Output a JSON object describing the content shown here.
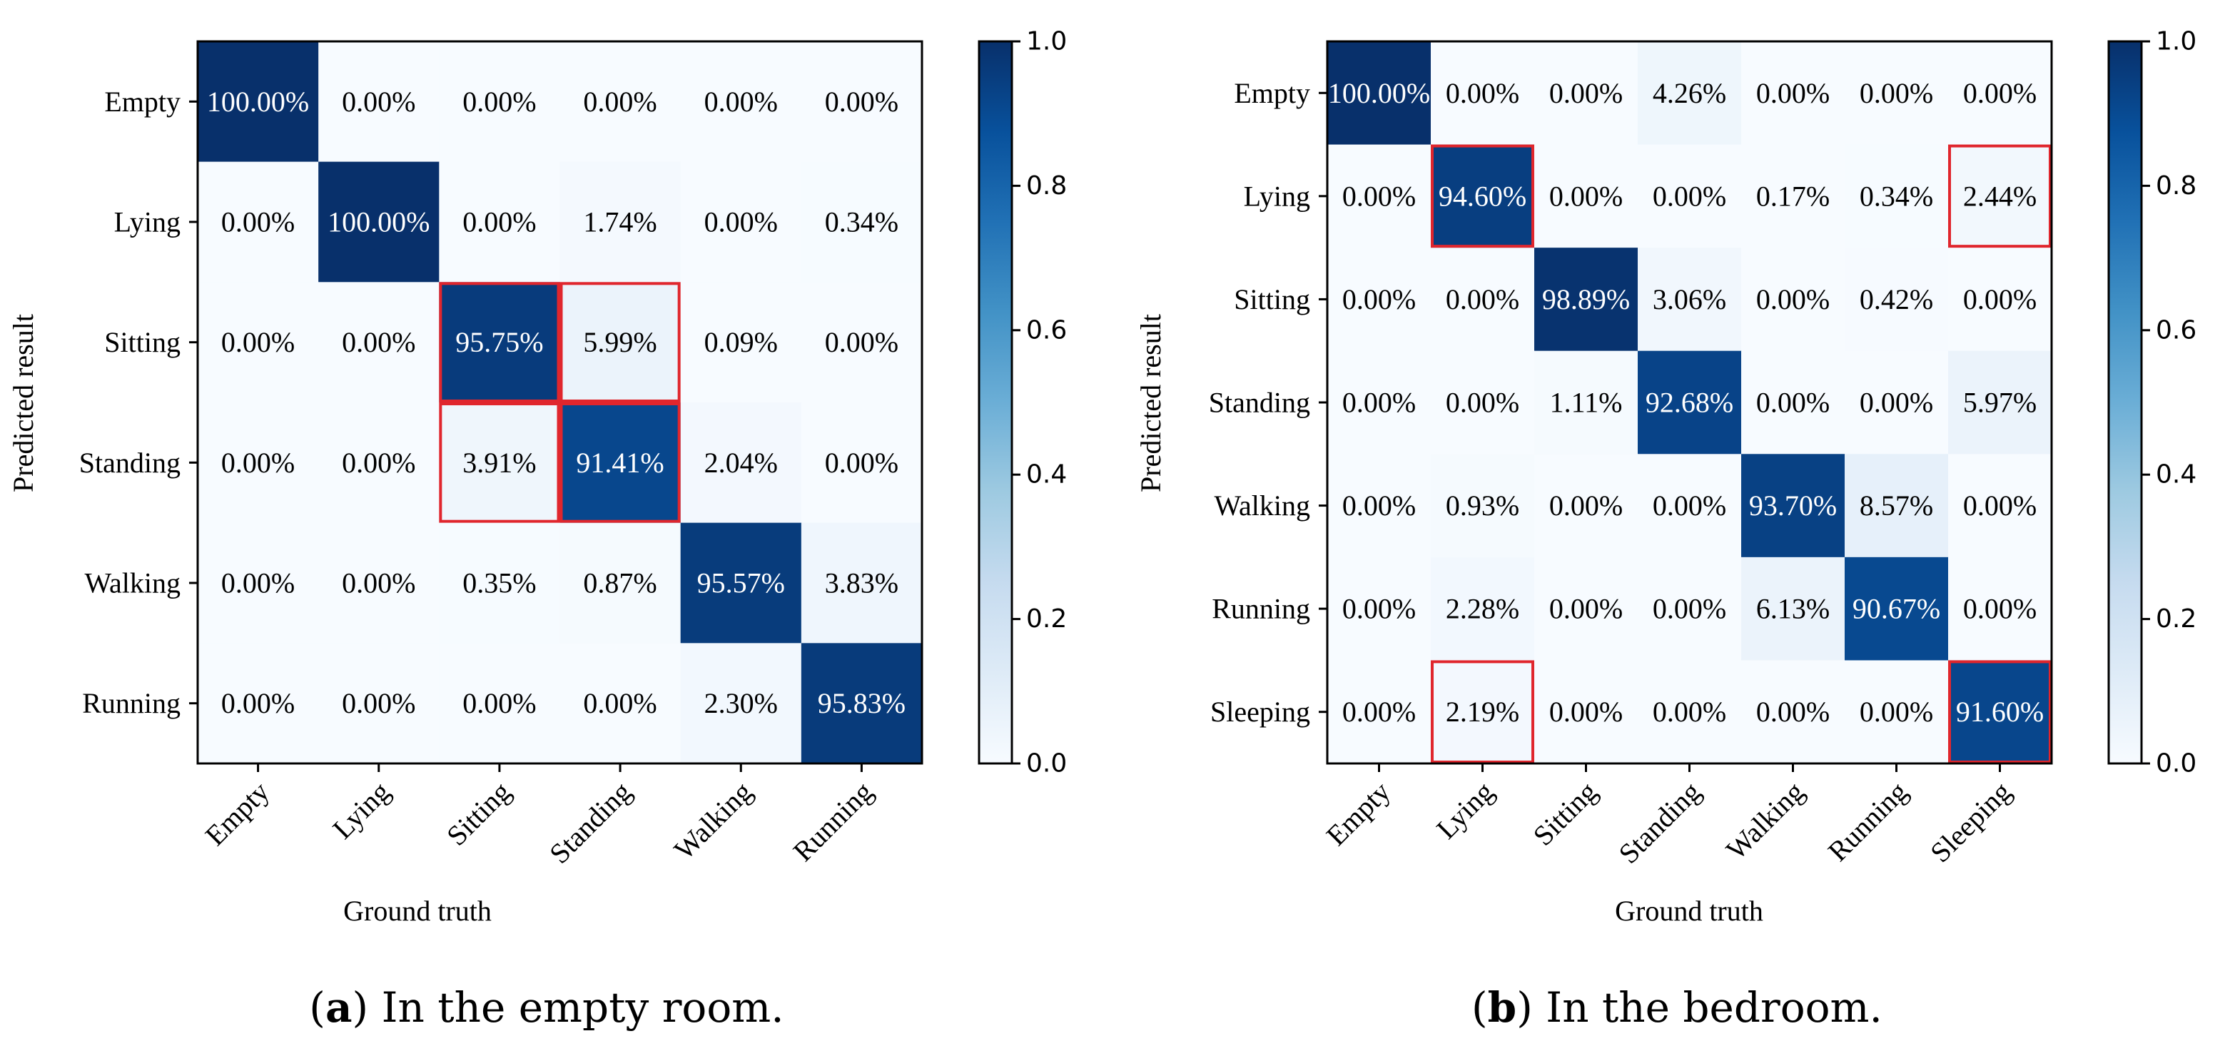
{
  "chart_data": [
    {
      "type": "heatmap",
      "caption_label": "a",
      "caption_text": "In the empty room.",
      "xlabel": "Ground truth",
      "ylabel": "Predicted result",
      "x_categories": [
        "Empty",
        "Lying",
        "Sitting",
        "Standing",
        "Walking",
        "Running"
      ],
      "y_categories": [
        "Empty",
        "Lying",
        "Sitting",
        "Standing",
        "Walking",
        "Running"
      ],
      "values": [
        [
          1.0,
          0.0,
          0.0,
          0.0,
          0.0,
          0.0
        ],
        [
          0.0,
          1.0,
          0.0,
          0.0174,
          0.0,
          0.0034
        ],
        [
          0.0,
          0.0,
          0.9575,
          0.0599,
          0.0009,
          0.0
        ],
        [
          0.0,
          0.0,
          0.0391,
          0.9141,
          0.0204,
          0.0
        ],
        [
          0.0,
          0.0,
          0.0035,
          0.0087,
          0.9557,
          0.0383
        ],
        [
          0.0,
          0.0,
          0.0,
          0.0,
          0.023,
          0.9583
        ]
      ],
      "labels": [
        [
          "100.00%",
          "0.00%",
          "0.00%",
          "0.00%",
          "0.00%",
          "0.00%"
        ],
        [
          "0.00%",
          "100.00%",
          "0.00%",
          "1.74%",
          "0.00%",
          "0.34%"
        ],
        [
          "0.00%",
          "0.00%",
          "95.75%",
          "5.99%",
          "0.09%",
          "0.00%"
        ],
        [
          "0.00%",
          "0.00%",
          "3.91%",
          "91.41%",
          "2.04%",
          "0.00%"
        ],
        [
          "0.00%",
          "0.00%",
          "0.35%",
          "0.87%",
          "95.57%",
          "3.83%"
        ],
        [
          "0.00%",
          "0.00%",
          "0.00%",
          "0.00%",
          "2.30%",
          "95.83%"
        ]
      ],
      "highlighted_cells": [
        [
          2,
          2
        ],
        [
          2,
          3
        ],
        [
          3,
          2
        ],
        [
          3,
          3
        ]
      ],
      "colorbar_ticks": [
        "0.0",
        "0.2",
        "0.4",
        "0.6",
        "0.8",
        "1.0"
      ],
      "vmin": 0.0,
      "vmax": 1.0
    },
    {
      "type": "heatmap",
      "caption_label": "b",
      "caption_text": "In the bedroom.",
      "xlabel": "Ground truth",
      "ylabel": "Predicted result",
      "x_categories": [
        "Empty",
        "Lying",
        "Sitting",
        "Standing",
        "Walking",
        "Running",
        "Sleeping"
      ],
      "y_categories": [
        "Empty",
        "Lying",
        "Sitting",
        "Standing",
        "Walking",
        "Running",
        "Sleeping"
      ],
      "values": [
        [
          1.0,
          0.0,
          0.0,
          0.0426,
          0.0,
          0.0,
          0.0
        ],
        [
          0.0,
          0.946,
          0.0,
          0.0,
          0.0017,
          0.0034,
          0.0244
        ],
        [
          0.0,
          0.0,
          0.9889,
          0.0306,
          0.0,
          0.0042,
          0.0
        ],
        [
          0.0,
          0.0,
          0.0111,
          0.9268,
          0.0,
          0.0,
          0.0597
        ],
        [
          0.0,
          0.0093,
          0.0,
          0.0,
          0.937,
          0.0857,
          0.0
        ],
        [
          0.0,
          0.0228,
          0.0,
          0.0,
          0.0613,
          0.9067,
          0.0
        ],
        [
          0.0,
          0.0219,
          0.0,
          0.0,
          0.0,
          0.0,
          0.916
        ]
      ],
      "labels": [
        [
          "100.00%",
          "0.00%",
          "0.00%",
          "4.26%",
          "0.00%",
          "0.00%",
          "0.00%"
        ],
        [
          "0.00%",
          "94.60%",
          "0.00%",
          "0.00%",
          "0.17%",
          "0.34%",
          "2.44%"
        ],
        [
          "0.00%",
          "0.00%",
          "98.89%",
          "3.06%",
          "0.00%",
          "0.42%",
          "0.00%"
        ],
        [
          "0.00%",
          "0.00%",
          "1.11%",
          "92.68%",
          "0.00%",
          "0.00%",
          "5.97%"
        ],
        [
          "0.00%",
          "0.93%",
          "0.00%",
          "0.00%",
          "93.70%",
          "8.57%",
          "0.00%"
        ],
        [
          "0.00%",
          "2.28%",
          "0.00%",
          "0.00%",
          "6.13%",
          "90.67%",
          "0.00%"
        ],
        [
          "0.00%",
          "2.19%",
          "0.00%",
          "0.00%",
          "0.00%",
          "0.00%",
          "91.60%"
        ]
      ],
      "highlighted_cells": [
        [
          1,
          1
        ],
        [
          1,
          6
        ],
        [
          6,
          1
        ],
        [
          6,
          6
        ]
      ],
      "colorbar_ticks": [
        "0.0",
        "0.2",
        "0.4",
        "0.6",
        "0.8",
        "1.0"
      ],
      "vmin": 0.0,
      "vmax": 1.0
    }
  ]
}
